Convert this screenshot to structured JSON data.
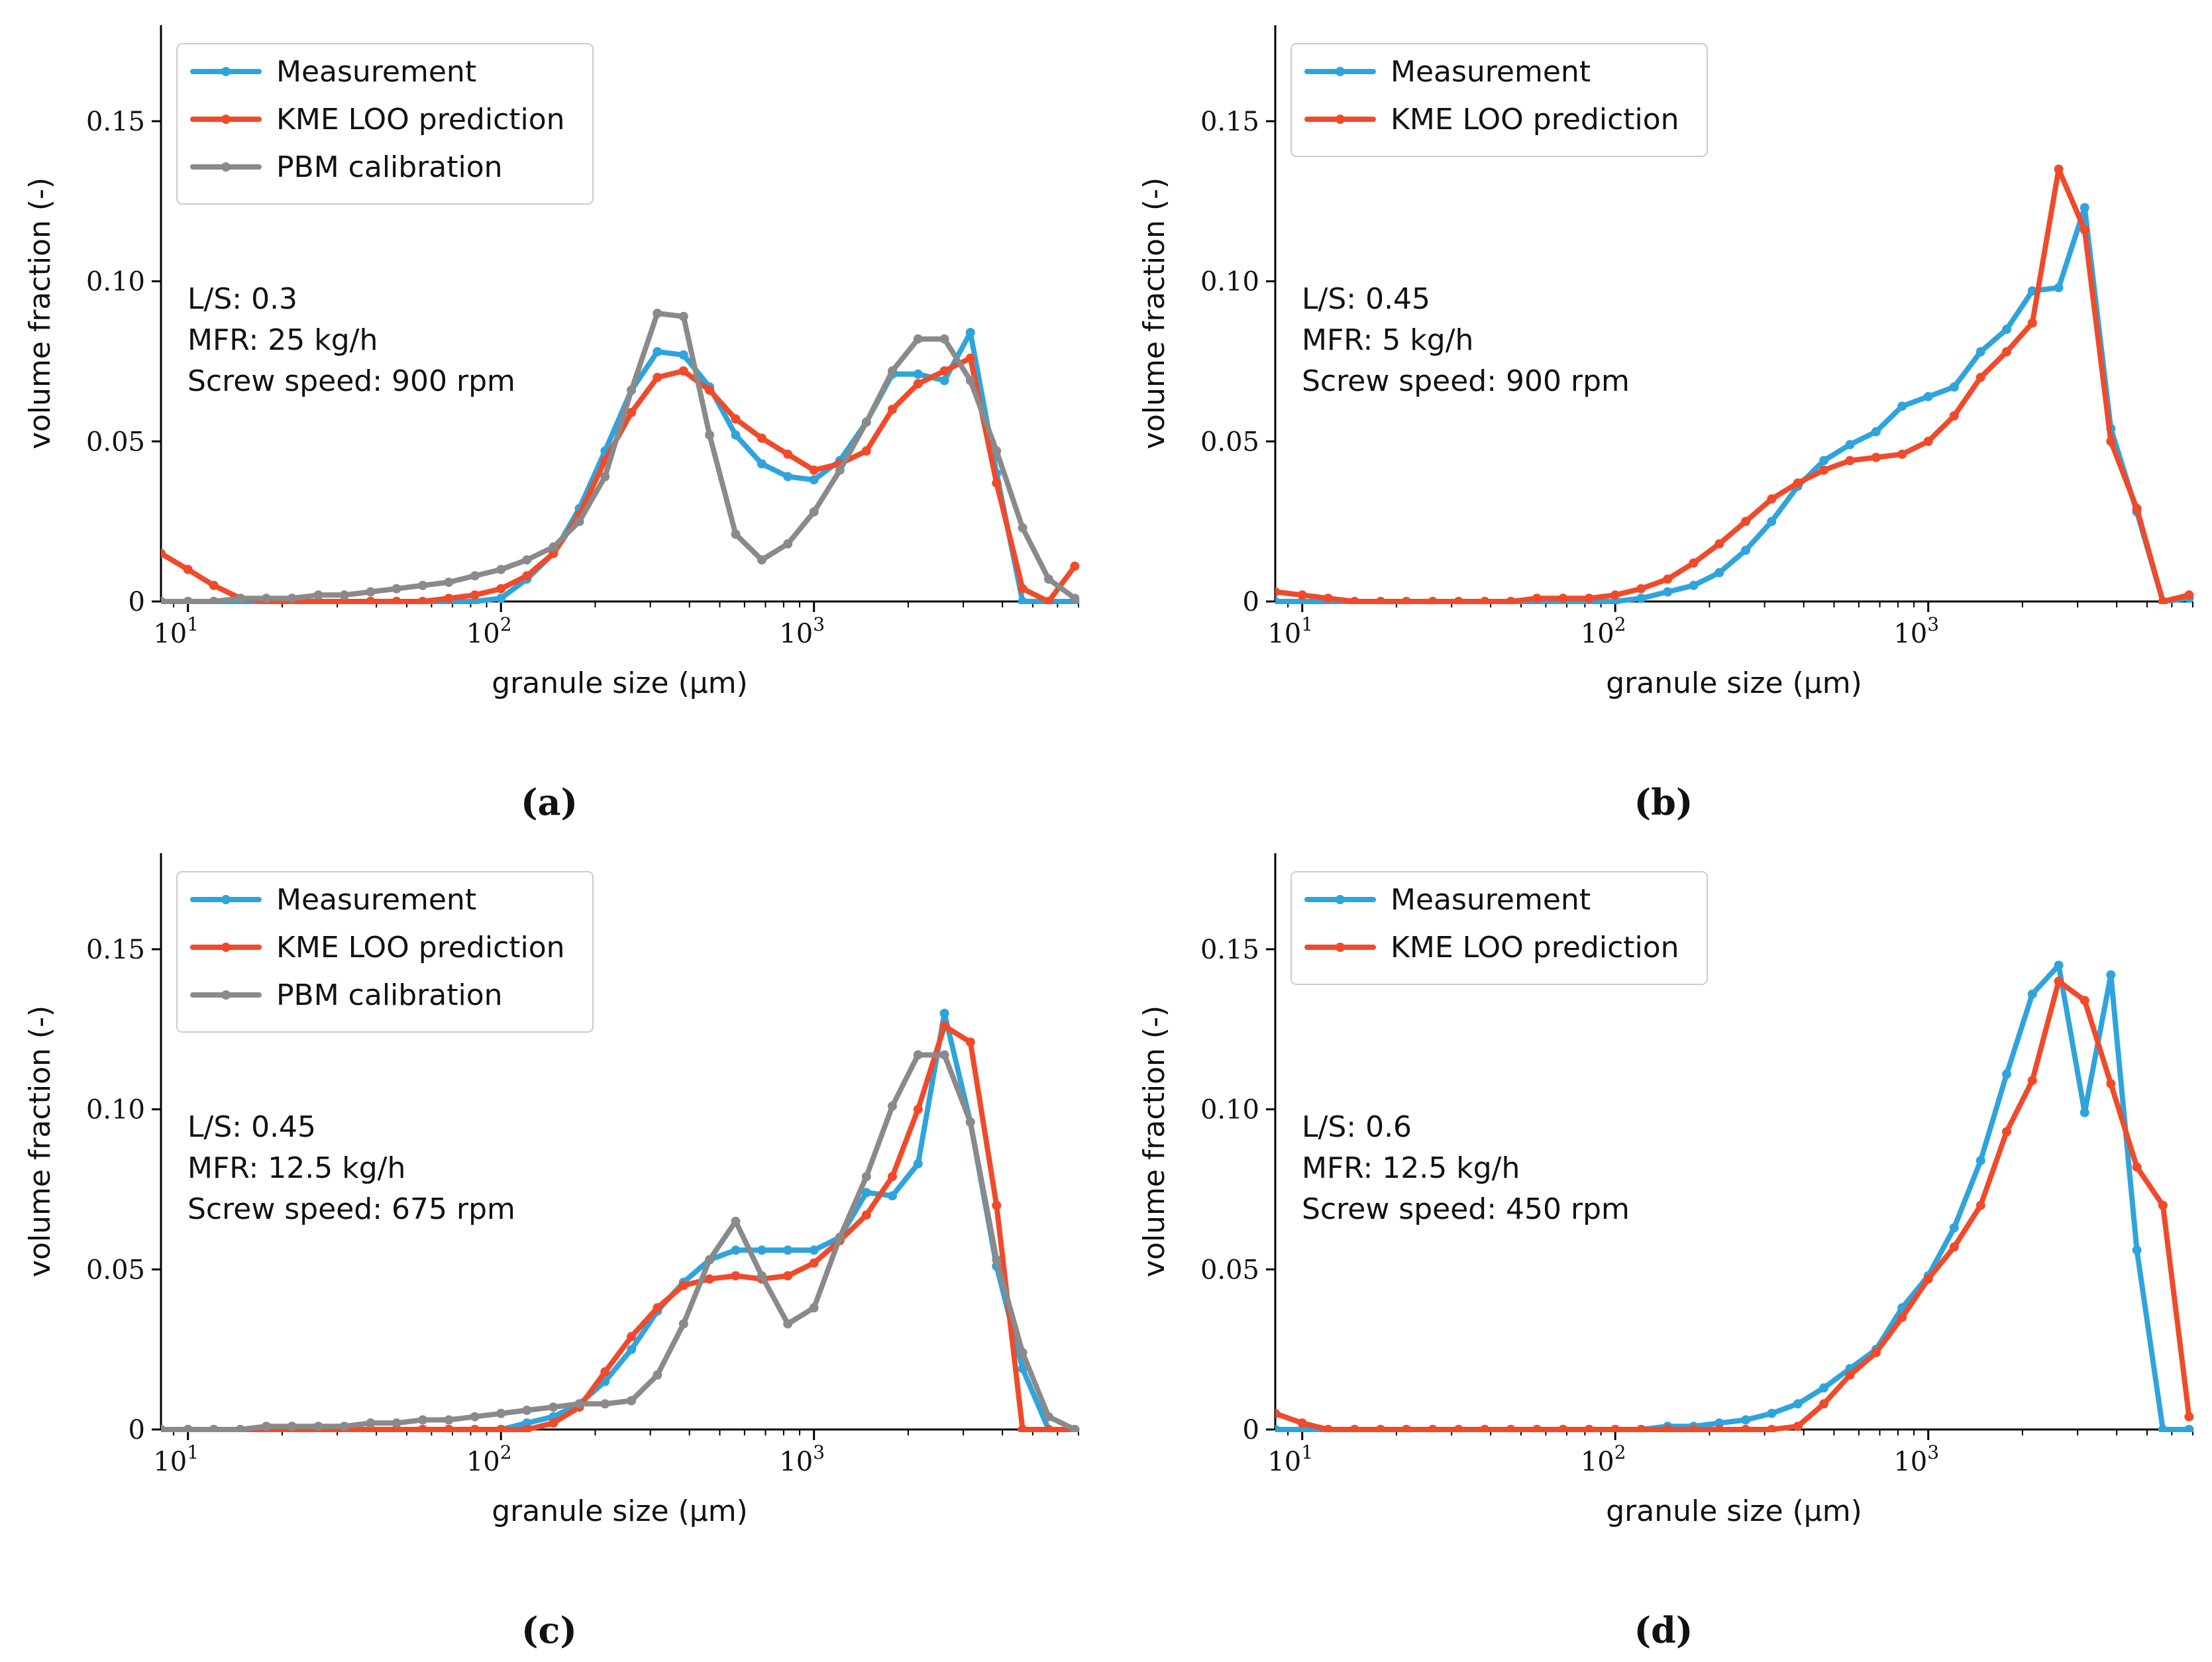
{
  "colors": {
    "measurement": "#2fa4dc",
    "kme": "#f04a2a",
    "pbm": "#8a8a8a",
    "axis": "#000000"
  },
  "chart_data": [
    {
      "type": "line",
      "caption": "(a)",
      "xlabel": "granule size (μm)",
      "ylabel": "volume fraction (-)",
      "xscale": "log",
      "xlim": [
        8.2,
        7000
      ],
      "ylim": [
        0,
        0.18
      ],
      "yticks": [
        0,
        0.05,
        0.1,
        0.15
      ],
      "ytick_labels": [
        "0",
        "0.05",
        "0.10",
        "0.15"
      ],
      "xtick_labels": [
        {
          "base": "10",
          "exp": "1"
        },
        {
          "base": "10",
          "exp": "2"
        },
        {
          "base": "10",
          "exp": "3"
        }
      ],
      "annotation": [
        "L/S: 0.3",
        "MFR: 25 kg/h",
        "Screw speed: 900 rpm"
      ],
      "legend": [
        "Measurement",
        "KME LOO prediction",
        "PBM calibration"
      ],
      "x": [
        8.2,
        10,
        12.1,
        14.7,
        17.8,
        21.5,
        26.1,
        31.6,
        38.3,
        46.4,
        56.2,
        68.1,
        82.5,
        100,
        121,
        147,
        178,
        215,
        261,
        316,
        383,
        464,
        562,
        681,
        825,
        1000,
        1210,
        1470,
        1780,
        2150,
        2610,
        3160,
        3830,
        4640,
        5620,
        6810
      ],
      "series": [
        {
          "name": "Measurement",
          "key": "measurement",
          "values": [
            0,
            0,
            0,
            0,
            0,
            0,
            0,
            0,
            0,
            0,
            0,
            0,
            0,
            0.001,
            0.007,
            0.015,
            0.029,
            0.047,
            0.066,
            0.078,
            0.077,
            0.067,
            0.052,
            0.043,
            0.039,
            0.038,
            0.044,
            0.056,
            0.071,
            0.071,
            0.069,
            0.084,
            0.04,
            0.0,
            0.0,
            0.0
          ]
        },
        {
          "name": "KME LOO prediction",
          "key": "kme",
          "values": [
            0.015,
            0.01,
            0.005,
            0.001,
            0,
            0,
            0,
            0,
            0,
            0,
            0,
            0.001,
            0.002,
            0.004,
            0.008,
            0.015,
            0.027,
            0.044,
            0.059,
            0.07,
            0.072,
            0.066,
            0.057,
            0.051,
            0.046,
            0.041,
            0.043,
            0.047,
            0.06,
            0.068,
            0.072,
            0.076,
            0.037,
            0.004,
            0.0,
            0.011
          ]
        },
        {
          "name": "PBM calibration",
          "key": "pbm",
          "values": [
            0.0,
            0.0,
            0.0,
            0.001,
            0.001,
            0.001,
            0.002,
            0.002,
            0.003,
            0.004,
            0.005,
            0.006,
            0.008,
            0.01,
            0.013,
            0.017,
            0.025,
            0.039,
            0.066,
            0.09,
            0.089,
            0.052,
            0.021,
            0.013,
            0.018,
            0.028,
            0.041,
            0.056,
            0.072,
            0.082,
            0.082,
            0.069,
            0.047,
            0.023,
            0.007,
            0.001
          ]
        }
      ]
    },
    {
      "type": "line",
      "caption": "(b)",
      "xlabel": "granule size (μm)",
      "ylabel": "volume fraction (-)",
      "xscale": "log",
      "xlim": [
        8.2,
        7000
      ],
      "ylim": [
        0,
        0.18
      ],
      "yticks": [
        0,
        0.05,
        0.1,
        0.15
      ],
      "ytick_labels": [
        "0",
        "0.05",
        "0.10",
        "0.15"
      ],
      "xtick_labels": [
        {
          "base": "10",
          "exp": "1"
        },
        {
          "base": "10",
          "exp": "2"
        },
        {
          "base": "10",
          "exp": "3"
        }
      ],
      "annotation": [
        "L/S: 0.45",
        "MFR: 5 kg/h",
        "Screw speed: 900 rpm"
      ],
      "legend": [
        "Measurement",
        "KME LOO prediction"
      ],
      "x": [
        8.2,
        10,
        12.1,
        14.7,
        17.8,
        21.5,
        26.1,
        31.6,
        38.3,
        46.4,
        56.2,
        68.1,
        82.5,
        100,
        121,
        147,
        178,
        215,
        261,
        316,
        383,
        464,
        562,
        681,
        825,
        1000,
        1210,
        1470,
        1780,
        2150,
        2610,
        3160,
        3830,
        4640,
        5620,
        6810
      ],
      "series": [
        {
          "name": "Measurement",
          "key": "measurement",
          "values": [
            0,
            0,
            0,
            0,
            0,
            0,
            0,
            0,
            0,
            0,
            0,
            0,
            0,
            0,
            0.001,
            0.003,
            0.005,
            0.009,
            0.016,
            0.025,
            0.036,
            0.044,
            0.049,
            0.053,
            0.061,
            0.064,
            0.067,
            0.078,
            0.085,
            0.097,
            0.098,
            0.123,
            0.054,
            0.028,
            0,
            0.001
          ]
        },
        {
          "name": "KME LOO prediction",
          "key": "kme",
          "values": [
            0.003,
            0.002,
            0.001,
            0,
            0,
            0,
            0,
            0,
            0,
            0,
            0.001,
            0.001,
            0.001,
            0.002,
            0.004,
            0.007,
            0.012,
            0.018,
            0.025,
            0.032,
            0.037,
            0.041,
            0.044,
            0.045,
            0.046,
            0.05,
            0.058,
            0.07,
            0.078,
            0.087,
            0.135,
            0.116,
            0.05,
            0.029,
            0.0,
            0.002
          ]
        }
      ]
    },
    {
      "type": "line",
      "caption": "(c)",
      "xlabel": "granule size (μm)",
      "ylabel": "volume fraction (-)",
      "xscale": "log",
      "xlim": [
        8.2,
        7000
      ],
      "ylim": [
        0,
        0.18
      ],
      "yticks": [
        0,
        0.05,
        0.1,
        0.15
      ],
      "ytick_labels": [
        "0",
        "0.05",
        "0.10",
        "0.15"
      ],
      "xtick_labels": [
        {
          "base": "10",
          "exp": "1"
        },
        {
          "base": "10",
          "exp": "2"
        },
        {
          "base": "10",
          "exp": "3"
        }
      ],
      "annotation": [
        "L/S: 0.45",
        "MFR: 12.5 kg/h",
        "Screw speed: 675 rpm"
      ],
      "legend": [
        "Measurement",
        "KME LOO prediction",
        "PBM calibration"
      ],
      "x": [
        8.2,
        10,
        12.1,
        14.7,
        17.8,
        21.5,
        26.1,
        31.6,
        38.3,
        46.4,
        56.2,
        68.1,
        82.5,
        100,
        121,
        147,
        178,
        215,
        261,
        316,
        383,
        464,
        562,
        681,
        825,
        1000,
        1210,
        1470,
        1780,
        2150,
        2610,
        3160,
        3830,
        4640,
        5620,
        6810
      ],
      "series": [
        {
          "name": "Measurement",
          "key": "measurement",
          "values": [
            0,
            0,
            0,
            0,
            0,
            0,
            0,
            0,
            0,
            0,
            0,
            0,
            0,
            0,
            0.002,
            0.004,
            0.008,
            0.015,
            0.025,
            0.037,
            0.046,
            0.053,
            0.056,
            0.056,
            0.056,
            0.056,
            0.06,
            0.074,
            0.073,
            0.083,
            0.13,
            0.096,
            0.051,
            0.019,
            0,
            0
          ]
        },
        {
          "name": "KME LOO prediction",
          "key": "kme",
          "values": [
            0,
            0,
            0,
            0,
            0,
            0,
            0,
            0,
            0,
            0,
            0,
            0,
            0,
            0,
            0,
            0.002,
            0.007,
            0.018,
            0.029,
            0.038,
            0.045,
            0.047,
            0.048,
            0.047,
            0.048,
            0.052,
            0.059,
            0.067,
            0.079,
            0.1,
            0.126,
            0.121,
            0.07,
            0.0,
            0,
            0
          ]
        },
        {
          "name": "PBM calibration",
          "key": "pbm",
          "values": [
            0,
            0,
            0,
            0,
            0.001,
            0.001,
            0.001,
            0.001,
            0.002,
            0.002,
            0.003,
            0.003,
            0.004,
            0.005,
            0.006,
            0.007,
            0.008,
            0.008,
            0.009,
            0.017,
            0.033,
            0.053,
            0.065,
            0.048,
            0.033,
            0.038,
            0.06,
            0.079,
            0.101,
            0.117,
            0.117,
            0.096,
            0.053,
            0.024,
            0.004,
            0
          ]
        }
      ]
    },
    {
      "type": "line",
      "caption": "(d)",
      "xlabel": "granule size (μm)",
      "ylabel": "volume fraction (-)",
      "xscale": "log",
      "xlim": [
        8.2,
        7000
      ],
      "ylim": [
        0,
        0.18
      ],
      "yticks": [
        0,
        0.05,
        0.1,
        0.15
      ],
      "ytick_labels": [
        "0",
        "0.05",
        "0.10",
        "0.15"
      ],
      "xtick_labels": [
        {
          "base": "10",
          "exp": "1"
        },
        {
          "base": "10",
          "exp": "2"
        },
        {
          "base": "10",
          "exp": "3"
        }
      ],
      "annotation": [
        "L/S: 0.6",
        "MFR: 12.5 kg/h",
        "Screw speed: 450 rpm"
      ],
      "legend": [
        "Measurement",
        "KME LOO prediction"
      ],
      "x": [
        8.2,
        10,
        12.1,
        14.7,
        17.8,
        21.5,
        26.1,
        31.6,
        38.3,
        46.4,
        56.2,
        68.1,
        82.5,
        100,
        121,
        147,
        178,
        215,
        261,
        316,
        383,
        464,
        562,
        681,
        825,
        1000,
        1210,
        1470,
        1780,
        2150,
        2610,
        3160,
        3830,
        4640,
        5620,
        6810
      ],
      "series": [
        {
          "name": "Measurement",
          "key": "measurement",
          "values": [
            0,
            0,
            0,
            0,
            0,
            0,
            0,
            0,
            0,
            0,
            0,
            0,
            0,
            0,
            0.0,
            0.001,
            0.001,
            0.002,
            0.003,
            0.005,
            0.008,
            0.013,
            0.019,
            0.025,
            0.038,
            0.048,
            0.063,
            0.084,
            0.111,
            0.136,
            0.145,
            0.099,
            0.142,
            0.056,
            0.0,
            0
          ]
        },
        {
          "name": "KME LOO prediction",
          "key": "kme",
          "values": [
            0.005,
            0.002,
            0.0,
            0,
            0,
            0,
            0,
            0,
            0,
            0,
            0,
            0,
            0,
            0,
            0,
            0,
            0,
            0,
            0,
            0,
            0.001,
            0.008,
            0.017,
            0.024,
            0.035,
            0.047,
            0.057,
            0.07,
            0.093,
            0.109,
            0.14,
            0.134,
            0.108,
            0.082,
            0.07,
            0.004
          ]
        }
      ]
    }
  ]
}
